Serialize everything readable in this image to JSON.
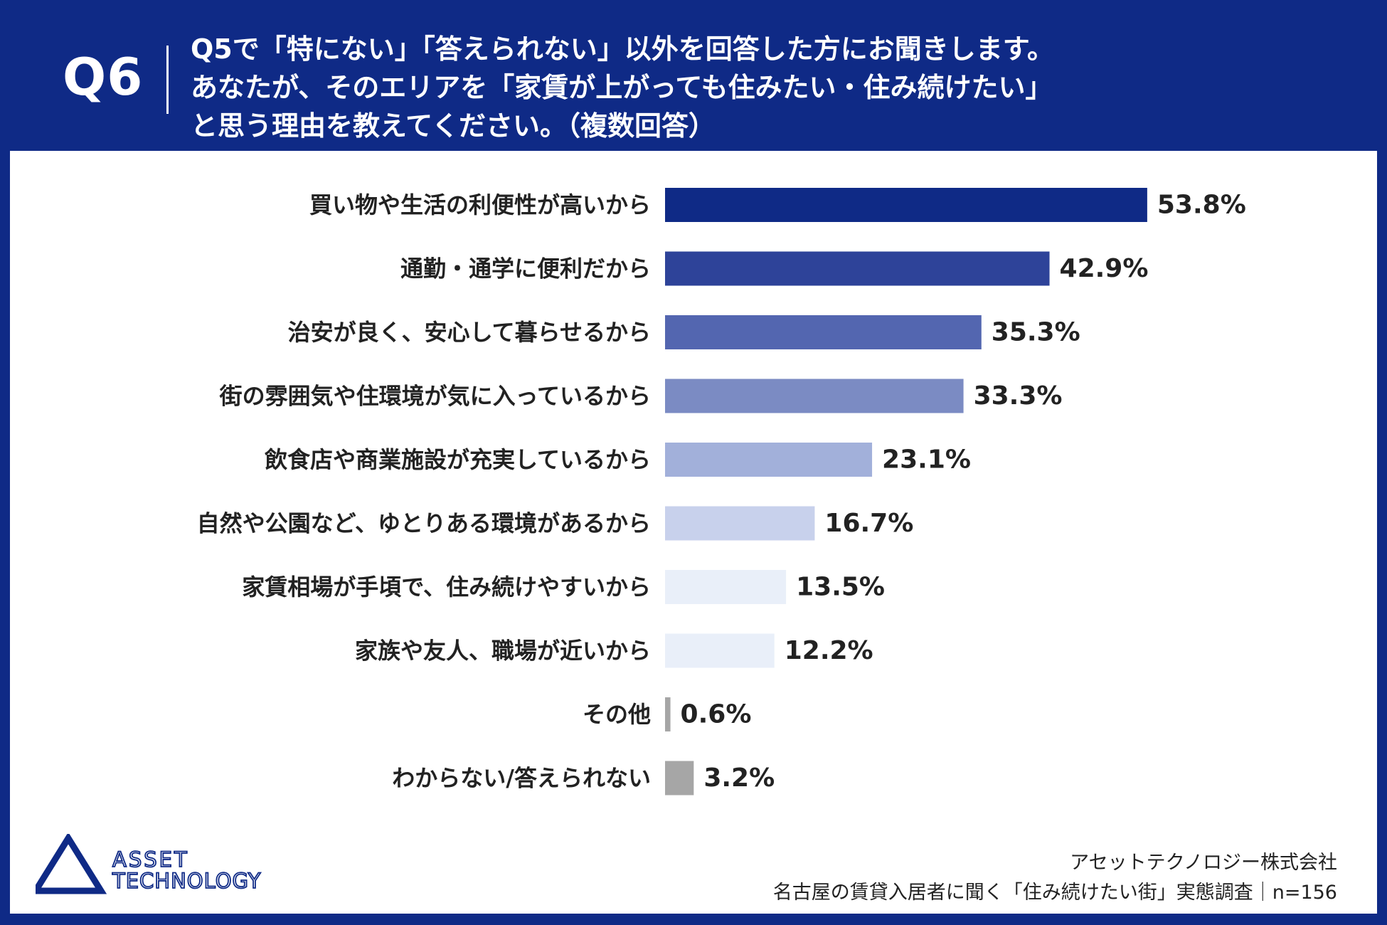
{
  "header": {
    "q_label": "Q6",
    "question_lines": [
      "Q5で「特にない」「答えられない」以外を回答した方にお聞きします。",
      "あなたが、そのエリアを「家賃が上がっても住みたい・住み続けたい」",
      "と思う理由を教えてください。（複数回答）"
    ]
  },
  "chart_data": {
    "type": "bar",
    "orientation": "horizontal",
    "categories": [
      "買い物や生活の利便性が高いから",
      "通勤・通学に便利だから",
      "治安が良く、安心して暮らせるから",
      "街の雰囲気や住環境が気に入っているから",
      "飲食店や商業施設が充実しているから",
      "自然や公園など、ゆとりある環境があるから",
      "家賃相場が手頃で、住み続けやすいから",
      "家族や友人、職場が近いから",
      "その他",
      "わからない/答えられない"
    ],
    "values": [
      53.8,
      42.9,
      35.3,
      33.3,
      23.1,
      16.7,
      13.5,
      12.2,
      0.6,
      3.2
    ],
    "value_labels": [
      "53.8%",
      "42.9%",
      "35.3%",
      "33.3%",
      "23.1%",
      "16.7%",
      "13.5%",
      "12.2%",
      "0.6%",
      "3.2%"
    ],
    "colors": [
      "#0f2a86",
      "#2e4399",
      "#5366b0",
      "#7b8bc3",
      "#a2b0da",
      "#c8d1ec",
      "#e9eff9",
      "#e9eff9",
      "#a6a6a6",
      "#a6a6a6"
    ],
    "unit": "%",
    "xlim": [
      0,
      100
    ],
    "grid": false,
    "legend": "none"
  },
  "logo": {
    "line1": "ASSET",
    "line2": "TECHNOLOGY"
  },
  "footer": {
    "company": "アセットテクノロジー株式会社",
    "survey": "名古屋の賃貸入居者に聞く「住み続けたい街」実態調査｜n=156"
  }
}
